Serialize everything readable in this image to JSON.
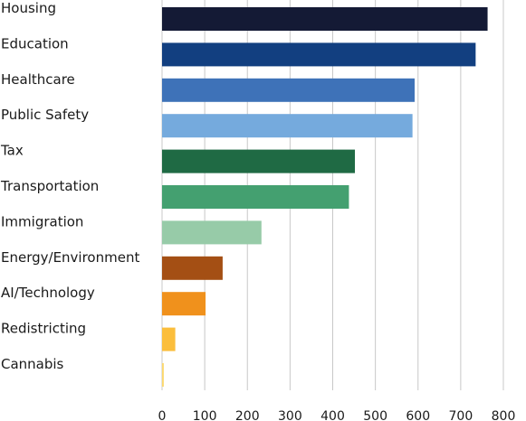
{
  "chart_data": {
    "type": "bar",
    "orientation": "horizontal",
    "title": "",
    "xlabel": "",
    "ylabel": "",
    "xlim": [
      0,
      800
    ],
    "x_ticks": [
      0,
      100,
      200,
      300,
      400,
      500,
      600,
      700,
      800
    ],
    "grid": "vertical",
    "legend": "none",
    "categories": [
      "Housing",
      "Education",
      "Healthcare",
      "Public Safety",
      "Tax",
      "Transportation",
      "Immigration",
      "Energy/Environment",
      "AI/Technology",
      "Redistricting",
      "Cannabis"
    ],
    "values": [
      763,
      735,
      592,
      587,
      452,
      438,
      233,
      142,
      102,
      31,
      4
    ],
    "colors": [
      "#141a35",
      "#123f80",
      "#3e72b8",
      "#75aadd",
      "#1f6a44",
      "#44a070",
      "#97cba8",
      "#a44f14",
      "#f0911c",
      "#fbbe3c",
      "#fcd86d"
    ]
  }
}
